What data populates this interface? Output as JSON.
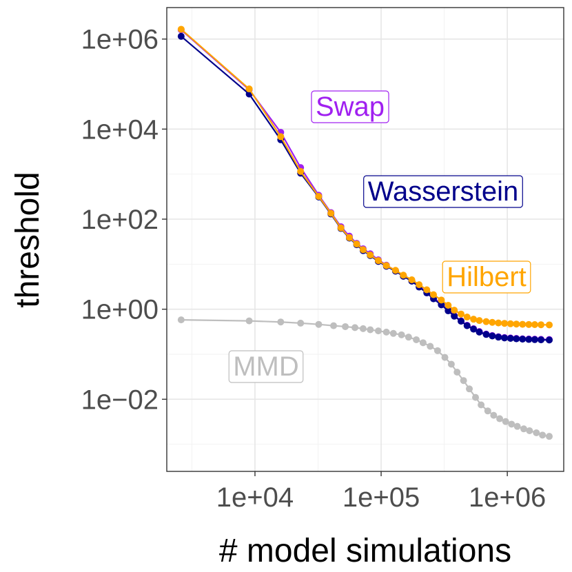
{
  "chart_data": {
    "type": "line",
    "xscale": "log10",
    "yscale": "log10",
    "xlabel": "# model simulations",
    "ylabel": "threshold",
    "xlim": [
      2000,
      2800000
    ],
    "ylim": [
      0.00025,
      5000000
    ],
    "grid": true,
    "xticks": [
      {
        "value": 10000,
        "label": "1e+04"
      },
      {
        "value": 100000,
        "label": "1e+05"
      },
      {
        "value": 1000000,
        "label": "1e+06"
      }
    ],
    "yticks": [
      {
        "value": 1000000,
        "label": "1e+06"
      },
      {
        "value": 10000,
        "label": "1e+04"
      },
      {
        "value": 100,
        "label": "1e+02"
      },
      {
        "value": 1,
        "label": "1e+00"
      },
      {
        "value": 0.01,
        "label": "1e−02"
      }
    ],
    "series": [
      {
        "name": "MMD",
        "color": "#bebebe",
        "label": "MMD",
        "x": [
          2600,
          9000,
          16000,
          23000,
          32000,
          42000,
          52000,
          62000,
          72000,
          82000,
          95000,
          110000,
          125000,
          145000,
          165000,
          190000,
          215000,
          245000,
          280000,
          320000,
          360000,
          400000,
          450000,
          500000,
          560000,
          620000,
          700000,
          780000,
          870000,
          970000,
          1080000,
          1200000,
          1350000,
          1500000,
          1700000,
          1900000,
          2150000
        ],
        "y": [
          0.58,
          0.55,
          0.52,
          0.49,
          0.46,
          0.43,
          0.41,
          0.39,
          0.37,
          0.35,
          0.33,
          0.31,
          0.29,
          0.27,
          0.24,
          0.21,
          0.18,
          0.15,
          0.12,
          0.085,
          0.06,
          0.04,
          0.026,
          0.017,
          0.011,
          0.0075,
          0.0055,
          0.0044,
          0.0037,
          0.0032,
          0.0028,
          0.0025,
          0.0022,
          0.002,
          0.0018,
          0.0016,
          0.0015
        ]
      },
      {
        "name": "Swap",
        "color": "#a020f0",
        "label": "Swap",
        "x": [
          2600,
          9000,
          16000,
          23000,
          32000,
          40000,
          48000,
          56000,
          64000,
          72000,
          82000,
          95000,
          110000,
          130000,
          150000,
          175000,
          200000,
          230000,
          260000,
          300000,
          340000,
          380000,
          430000,
          480000,
          540000,
          600000,
          680000,
          760000,
          850000,
          950000,
          1060000,
          1180000,
          1320000,
          1480000,
          1650000,
          1850000,
          2150000
        ],
        "y": [
          1600000,
          75000,
          8500,
          1400,
          340,
          140,
          68,
          42,
          29,
          22,
          17,
          12.5,
          9.5,
          7.2,
          5.5,
          4.3,
          3.2,
          2.4,
          1.8,
          1.3,
          0.95,
          0.72,
          0.55,
          0.44,
          0.37,
          0.32,
          0.28,
          0.26,
          0.245,
          0.235,
          0.23,
          0.225,
          0.22,
          0.218,
          0.216,
          0.214,
          0.212
        ]
      },
      {
        "name": "Wasserstein",
        "color": "#00008b",
        "label": "Wasserstein",
        "x": [
          2600,
          9000,
          16000,
          23000,
          32000,
          40000,
          48000,
          56000,
          64000,
          72000,
          82000,
          95000,
          110000,
          130000,
          150000,
          175000,
          200000,
          230000,
          260000,
          300000,
          340000,
          380000,
          430000,
          480000,
          540000,
          600000,
          680000,
          760000,
          850000,
          950000,
          1060000,
          1180000,
          1320000,
          1480000,
          1650000,
          1850000,
          2150000
        ],
        "y": [
          1150000,
          60000,
          5800,
          1050,
          310,
          130,
          62,
          38,
          27,
          20,
          15.5,
          11.5,
          9,
          7,
          5.4,
          4.2,
          3.1,
          2.3,
          1.7,
          1.25,
          0.92,
          0.7,
          0.54,
          0.43,
          0.36,
          0.31,
          0.275,
          0.255,
          0.24,
          0.23,
          0.225,
          0.22,
          0.216,
          0.213,
          0.211,
          0.209,
          0.207
        ]
      },
      {
        "name": "Hilbert",
        "color": "#ffa500",
        "label": "Hilbert",
        "x": [
          2600,
          9000,
          16000,
          23000,
          32000,
          40000,
          48000,
          56000,
          64000,
          72000,
          82000,
          95000,
          110000,
          130000,
          150000,
          175000,
          200000,
          230000,
          260000,
          300000,
          340000,
          380000,
          430000,
          480000,
          540000,
          600000,
          680000,
          760000,
          850000,
          950000,
          1060000,
          1180000,
          1320000,
          1480000,
          1650000,
          1850000,
          2150000
        ],
        "y": [
          1650000,
          78000,
          6800,
          1150,
          320,
          135,
          64,
          39,
          28,
          21,
          16,
          12,
          9.3,
          7.3,
          5.7,
          4.5,
          3.5,
          2.7,
          2.1,
          1.6,
          1.22,
          0.95,
          0.78,
          0.67,
          0.6,
          0.56,
          0.53,
          0.51,
          0.495,
          0.485,
          0.475,
          0.468,
          0.462,
          0.458,
          0.455,
          0.452,
          0.448
        ]
      }
    ]
  }
}
